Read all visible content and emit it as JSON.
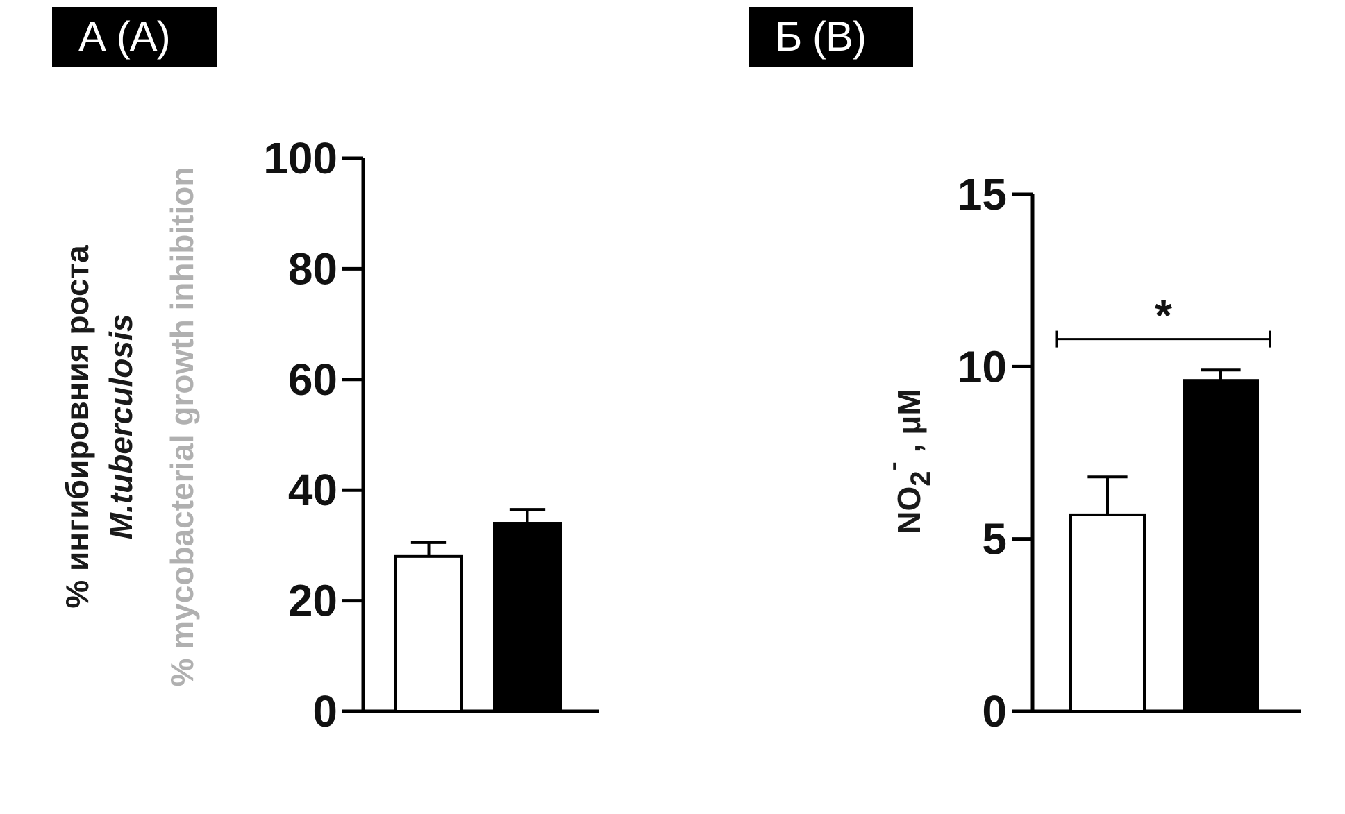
{
  "panels": {
    "a": {
      "label": "А (A)"
    },
    "b": {
      "label": "Б (B)"
    }
  },
  "chart_data": [
    {
      "type": "bar",
      "panel": "А (A)",
      "categories": [
        "",
        ""
      ],
      "values": [
        28,
        34
      ],
      "errors": [
        2.5,
        2.5
      ],
      "fill_colors": [
        "#ffffff",
        "#000000"
      ],
      "ylabel_lines": [
        "% ингибировния роста",
        "M.tuberculosis",
        "% mycobacterial growth inhibition"
      ],
      "ylim": [
        0,
        100
      ],
      "yticks": [
        0,
        20,
        40,
        60,
        80,
        100
      ],
      "ytick_labels": [
        "0",
        "20",
        "40",
        "60",
        "80",
        "100"
      ],
      "grid": false
    },
    {
      "type": "bar",
      "panel": "Б (B)",
      "categories": [
        "",
        ""
      ],
      "values": [
        5.7,
        9.6
      ],
      "errors": [
        1.1,
        0.3
      ],
      "fill_colors": [
        "#ffffff",
        "#000000"
      ],
      "ylabel": "NO2⁻ , μM",
      "ylim": [
        0,
        15
      ],
      "yticks": [
        0,
        5,
        10,
        15
      ],
      "ytick_labels": [
        "0",
        "5",
        "10",
        "15"
      ],
      "significance": {
        "label": "*",
        "between": [
          0,
          1
        ],
        "y": 10.8
      },
      "grid": false
    }
  ]
}
